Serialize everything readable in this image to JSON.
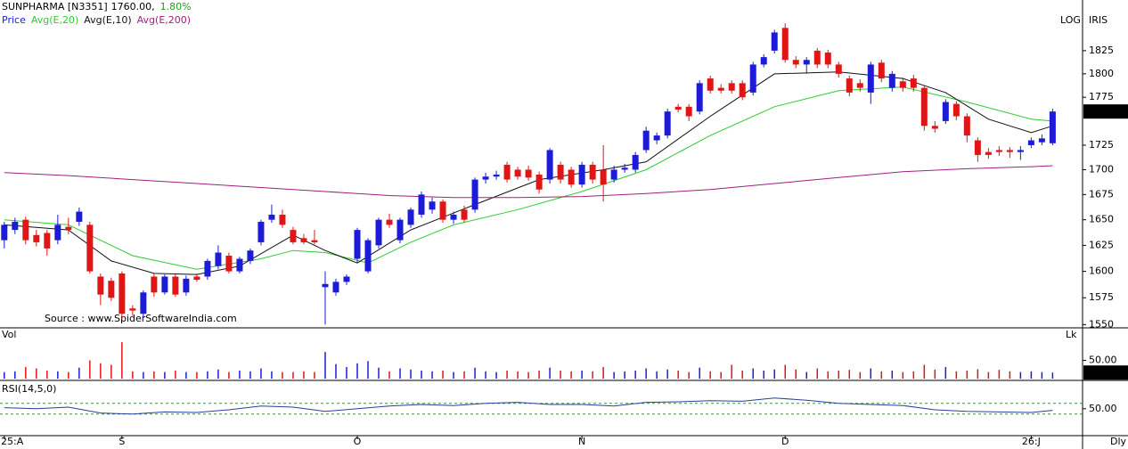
{
  "chart_data": {
    "type": "candlestick",
    "header": {
      "symbol": "SUNPHARMA [N3351]",
      "price": "1760.00,",
      "change": "1.80%"
    },
    "price_legend": "Price",
    "source": "Source : www.SpiderSoftwareIndia.com",
    "scale_label": "LOG",
    "brand": "IRIS",
    "period": "Dly",
    "log_scale": true,
    "up_color": "#1c1cd8",
    "down_color": "#e01515",
    "candles": [
      [
        1630,
        1648,
        1622,
        1645
      ],
      [
        1640,
        1652,
        1636,
        1648
      ],
      [
        1650,
        1653,
        1626,
        1630
      ],
      [
        1635,
        1640,
        1624,
        1628
      ],
      [
        1637,
        1640,
        1615,
        1622
      ],
      [
        1630,
        1655,
        1626,
        1645
      ],
      [
        1643,
        1652,
        1636,
        1640
      ],
      [
        1648,
        1662,
        1644,
        1658
      ],
      [
        1645,
        1648,
        1598,
        1600
      ],
      [
        1595,
        1598,
        1568,
        1578
      ],
      [
        1591,
        1594,
        1572,
        1575
      ],
      [
        1598,
        1600,
        1555,
        1560
      ],
      [
        1565,
        1568,
        1558,
        1563
      ],
      [
        1560,
        1582,
        1556,
        1580
      ],
      [
        1595,
        1598,
        1576,
        1580
      ],
      [
        1580,
        1597,
        1578,
        1595
      ],
      [
        1595,
        1597,
        1576,
        1578
      ],
      [
        1580,
        1596,
        1577,
        1593
      ],
      [
        1595,
        1598,
        1590,
        1592
      ],
      [
        1595,
        1612,
        1592,
        1610
      ],
      [
        1605,
        1625,
        1602,
        1618
      ],
      [
        1615,
        1618,
        1598,
        1600
      ],
      [
        1600,
        1614,
        1598,
        1612
      ],
      [
        1610,
        1622,
        1607,
        1620
      ],
      [
        1628,
        1650,
        1625,
        1648
      ],
      [
        1650,
        1665,
        1647,
        1655
      ],
      [
        1655,
        1660,
        1642,
        1645
      ],
      [
        1640,
        1643,
        1626,
        1628
      ],
      [
        1632,
        1636,
        1626,
        1628
      ],
      [
        1630,
        1640,
        1626,
        1628
      ],
      [
        1585,
        1600,
        1550,
        1588
      ],
      [
        1580,
        1593,
        1577,
        1590
      ],
      [
        1590,
        1597,
        1587,
        1595
      ],
      [
        1612,
        1642,
        1608,
        1640
      ],
      [
        1600,
        1632,
        1598,
        1630
      ],
      [
        1625,
        1652,
        1622,
        1650
      ],
      [
        1650,
        1656,
        1642,
        1645
      ],
      [
        1630,
        1652,
        1627,
        1650
      ],
      [
        1645,
        1662,
        1642,
        1660
      ],
      [
        1655,
        1678,
        1652,
        1675
      ],
      [
        1660,
        1672,
        1656,
        1668
      ],
      [
        1668,
        1670,
        1647,
        1650
      ],
      [
        1650,
        1658,
        1646,
        1655
      ],
      [
        1660,
        1664,
        1647,
        1650
      ],
      [
        1660,
        1692,
        1657,
        1690
      ],
      [
        1690,
        1697,
        1686,
        1693
      ],
      [
        1693,
        1699,
        1690,
        1695
      ],
      [
        1705,
        1708,
        1687,
        1690
      ],
      [
        1700,
        1703,
        1690,
        1693
      ],
      [
        1700,
        1704,
        1689,
        1692
      ],
      [
        1695,
        1698,
        1676,
        1680
      ],
      [
        1690,
        1722,
        1686,
        1720
      ],
      [
        1705,
        1708,
        1686,
        1690
      ],
      [
        1700,
        1703,
        1682,
        1685
      ],
      [
        1685,
        1708,
        1682,
        1705
      ],
      [
        1705,
        1708,
        1686,
        1690
      ],
      [
        1700,
        1725,
        1668,
        1685
      ],
      [
        1690,
        1704,
        1687,
        1700
      ],
      [
        1700,
        1706,
        1697,
        1702
      ],
      [
        1700,
        1718,
        1697,
        1715
      ],
      [
        1720,
        1744,
        1717,
        1740
      ],
      [
        1730,
        1738,
        1726,
        1735
      ],
      [
        1735,
        1763,
        1732,
        1760
      ],
      [
        1765,
        1768,
        1759,
        1762
      ],
      [
        1765,
        1768,
        1750,
        1755
      ],
      [
        1760,
        1793,
        1757,
        1790
      ],
      [
        1795,
        1798,
        1779,
        1782
      ],
      [
        1785,
        1789,
        1779,
        1782
      ],
      [
        1790,
        1793,
        1779,
        1782
      ],
      [
        1790,
        1793,
        1772,
        1775
      ],
      [
        1780,
        1813,
        1777,
        1810
      ],
      [
        1810,
        1821,
        1807,
        1818
      ],
      [
        1825,
        1848,
        1822,
        1845
      ],
      [
        1850,
        1855,
        1812,
        1815
      ],
      [
        1815,
        1819,
        1806,
        1810
      ],
      [
        1810,
        1818,
        1800,
        1815
      ],
      [
        1825,
        1828,
        1806,
        1810
      ],
      [
        1823,
        1826,
        1806,
        1810
      ],
      [
        1810,
        1813,
        1796,
        1800
      ],
      [
        1795,
        1798,
        1776,
        1780
      ],
      [
        1790,
        1794,
        1781,
        1785
      ],
      [
        1780,
        1813,
        1768,
        1810
      ],
      [
        1812,
        1815,
        1791,
        1795
      ],
      [
        1785,
        1803,
        1781,
        1800
      ],
      [
        1792,
        1796,
        1781,
        1785
      ],
      [
        1795,
        1799,
        1781,
        1785
      ],
      [
        1785,
        1788,
        1740,
        1745
      ],
      [
        1745,
        1750,
        1738,
        1742
      ],
      [
        1750,
        1773,
        1747,
        1770
      ],
      [
        1768,
        1771,
        1751,
        1755
      ],
      [
        1755,
        1758,
        1728,
        1735
      ],
      [
        1730,
        1733,
        1708,
        1715
      ],
      [
        1718,
        1722,
        1711,
        1715
      ],
      [
        1720,
        1724,
        1714,
        1718
      ],
      [
        1720,
        1723,
        1712,
        1718
      ],
      [
        1718,
        1724,
        1710,
        1720
      ],
      [
        1725,
        1733,
        1722,
        1730
      ],
      [
        1728,
        1736,
        1725,
        1732
      ],
      [
        1727,
        1763,
        1725,
        1760
      ]
    ],
    "series": [
      {
        "name": "Avg(E,20)",
        "color": "#2fcc2f",
        "x": [
          0,
          6,
          12,
          18,
          24,
          27,
          30,
          34,
          38,
          42,
          48,
          54,
          60,
          66,
          72,
          78,
          84,
          90,
          96,
          98
        ],
        "values": [
          1650,
          1645,
          1615,
          1602,
          1612,
          1620,
          1618,
          1608,
          1628,
          1645,
          1660,
          1678,
          1700,
          1735,
          1765,
          1782,
          1786,
          1770,
          1752,
          1750
        ]
      },
      {
        "name": "Avg(E,10)",
        "color": "#111111",
        "x": [
          0,
          6,
          10,
          14,
          18,
          22,
          27,
          30,
          33,
          38,
          44,
          50,
          56,
          60,
          66,
          72,
          78,
          84,
          88,
          92,
          96,
          98
        ],
        "values": [
          1645,
          1640,
          1610,
          1598,
          1597,
          1605,
          1635,
          1620,
          1608,
          1640,
          1665,
          1690,
          1700,
          1708,
          1755,
          1800,
          1802,
          1795,
          1780,
          1752,
          1738,
          1745
        ]
      },
      {
        "name": "Avg(E,200)",
        "color": "#a0207e",
        "x": [
          0,
          6,
          12,
          18,
          24,
          30,
          36,
          42,
          48,
          54,
          60,
          66,
          72,
          78,
          84,
          90,
          96,
          98
        ],
        "values": [
          1697,
          1694,
          1690,
          1686,
          1682,
          1678,
          1674,
          1672,
          1672,
          1673,
          1676,
          1680,
          1686,
          1692,
          1698,
          1701,
          1703,
          1704
        ]
      }
    ],
    "xlim": [
      -0.4,
      100.8
    ],
    "xticks": [
      {
        "value": 0,
        "label": "25:A"
      },
      {
        "value": 11,
        "label": "S"
      },
      {
        "value": 33,
        "label": "O"
      },
      {
        "value": 54,
        "label": "N"
      },
      {
        "value": 73,
        "label": "D"
      },
      {
        "value": 96,
        "label": "26:J"
      }
    ],
    "ylim": [
      1547,
      1881
    ],
    "yticks": [
      1550,
      1575,
      1600,
      1625,
      1650,
      1675,
      1700,
      1725,
      1775,
      1800,
      1825
    ],
    "last_price": {
      "value": 1760,
      "label": "1760.00"
    },
    "volume": {
      "label": "Vol",
      "unit": "Lk",
      "values": [
        18,
        20,
        32,
        28,
        22,
        20,
        18,
        30,
        50,
        42,
        38,
        100,
        20,
        18,
        20,
        18,
        22,
        18,
        18,
        20,
        25,
        18,
        22,
        20,
        28,
        20,
        18,
        18,
        20,
        18,
        73,
        40,
        32,
        42,
        48,
        30,
        20,
        28,
        25,
        22,
        20,
        22,
        18,
        20,
        30,
        20,
        18,
        22,
        20,
        18,
        22,
        30,
        22,
        20,
        22,
        20,
        32,
        18,
        20,
        22,
        28,
        20,
        25,
        22,
        18,
        30,
        20,
        18,
        38,
        22,
        28,
        22,
        25,
        38,
        25,
        18,
        28,
        20,
        22,
        24,
        18,
        28,
        20,
        22,
        18,
        20,
        38,
        25,
        32,
        20,
        22,
        26,
        18,
        24,
        20,
        18,
        20,
        18,
        16.59
      ],
      "ylim": [
        0,
        110
      ],
      "yticks": [
        {
          "value": 50,
          "label": "50.00"
        }
      ]
    },
    "rsi": {
      "label": "RSI(14,5,0)",
      "color": "#2a3f9e",
      "x": [
        0,
        3,
        6,
        9,
        12,
        15,
        18,
        21,
        24,
        27,
        30,
        33,
        36,
        39,
        42,
        45,
        48,
        51,
        54,
        57,
        60,
        63,
        66,
        69,
        72,
        75,
        78,
        81,
        84,
        87,
        90,
        93,
        96,
        98
      ],
      "values": [
        52,
        50,
        53,
        42,
        40,
        44,
        43,
        48,
        55,
        53,
        45,
        50,
        55,
        58,
        56,
        60,
        62,
        58,
        58,
        55,
        62,
        63,
        65,
        64,
        70,
        66,
        60,
        58,
        56,
        48,
        45,
        44,
        43,
        47
      ],
      "ylim": [
        3,
        98
      ],
      "yticks": [
        {
          "value": 50,
          "label": "50.00"
        }
      ],
      "levels": [
        40,
        60
      ]
    }
  }
}
